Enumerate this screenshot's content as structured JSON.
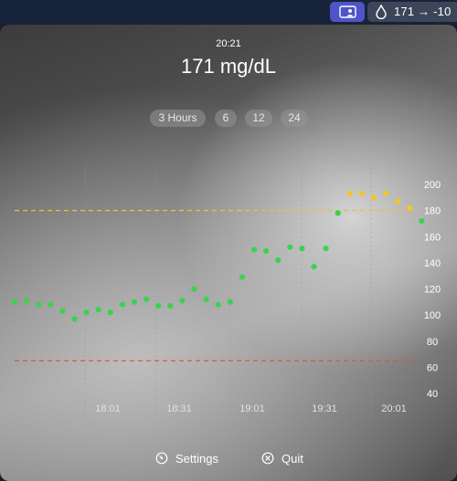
{
  "menubar": {
    "display_icon": "display-person-icon",
    "drop_icon": "water-drop-icon",
    "status_text": "171 → -10"
  },
  "header": {
    "time": "20:21",
    "reading": "171 mg/dL"
  },
  "range_buttons": [
    "3 Hours",
    "6",
    "12",
    "24"
  ],
  "footer": {
    "settings_label": "Settings",
    "quit_label": "Quit"
  },
  "colors": {
    "in_range": "#3bd24f",
    "high": "#f4c430",
    "high_line": "#e8c23a",
    "low_line": "#d9534f"
  },
  "chart_data": {
    "type": "scatter",
    "xlabels": [
      "18:01",
      "18:31",
      "19:01",
      "19:31",
      "20:01"
    ],
    "ylabels": [
      "200",
      "180",
      "160",
      "140",
      "120",
      "100",
      "80",
      "60",
      "40"
    ],
    "ylim": [
      40,
      210
    ],
    "high_threshold": 180,
    "low_threshold": 65,
    "points": [
      [
        17.1,
        110
      ],
      [
        17.2,
        111
      ],
      [
        17.3,
        108
      ],
      [
        17.4,
        108
      ],
      [
        17.5,
        103
      ],
      [
        17.6,
        97
      ],
      [
        17.7,
        102
      ],
      [
        17.8,
        104
      ],
      [
        17.9,
        102
      ],
      [
        18.0,
        108
      ],
      [
        18.1,
        110
      ],
      [
        18.2,
        112
      ],
      [
        18.3,
        107
      ],
      [
        18.4,
        107
      ],
      [
        18.5,
        111
      ],
      [
        18.6,
        120
      ],
      [
        18.7,
        112
      ],
      [
        18.8,
        108
      ],
      [
        18.9,
        110
      ],
      [
        19.0,
        129
      ],
      [
        19.1,
        150
      ],
      [
        19.2,
        149
      ],
      [
        19.3,
        142
      ],
      [
        19.4,
        152
      ],
      [
        19.5,
        151
      ],
      [
        19.6,
        137
      ],
      [
        19.7,
        151
      ],
      [
        19.8,
        178
      ],
      [
        19.9,
        193
      ],
      [
        20.0,
        193
      ],
      [
        20.1,
        190
      ],
      [
        20.2,
        193
      ],
      [
        20.3,
        187
      ],
      [
        20.4,
        182
      ],
      [
        20.5,
        172
      ]
    ]
  }
}
